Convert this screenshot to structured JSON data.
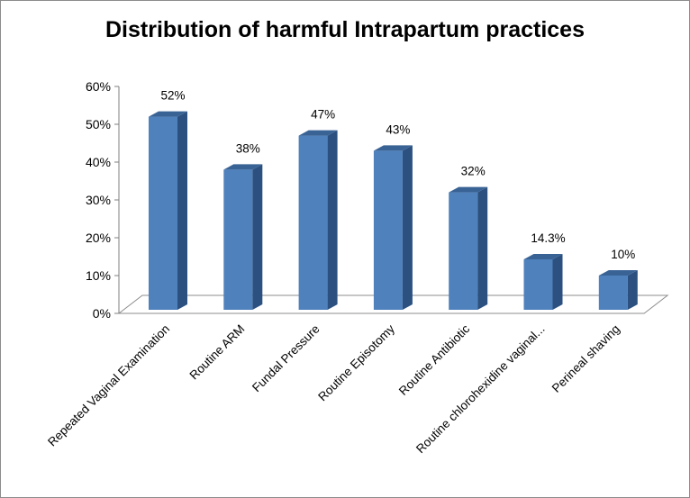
{
  "chart_data": {
    "type": "bar",
    "title": "Distribution of harmful Intrapartum practices",
    "xlabel": "",
    "ylabel": "",
    "ylim": [
      0,
      60
    ],
    "yticks": [
      "0%",
      "10%",
      "20%",
      "30%",
      "40%",
      "50%",
      "60%"
    ],
    "categories": [
      "Repeated Vaginal Examination",
      "Routine ARM",
      "Fundal Pressure",
      "Routine Episotomy",
      "Routine Antibiotic",
      "Routine chlorohexidine vaginal...",
      "Perineal shaving"
    ],
    "values": [
      52,
      38,
      47,
      43,
      32,
      14.3,
      10
    ],
    "data_labels": [
      "52%",
      "38%",
      "47%",
      "43%",
      "32%",
      "14.3%",
      "10%"
    ],
    "grid": false,
    "legend": "none",
    "colors": {
      "bar_front": "#4f81bd",
      "bar_side": "#2c5180",
      "bar_top": "#3a6395",
      "floor": "#ffffff",
      "axis": "#7f7f7f"
    }
  }
}
